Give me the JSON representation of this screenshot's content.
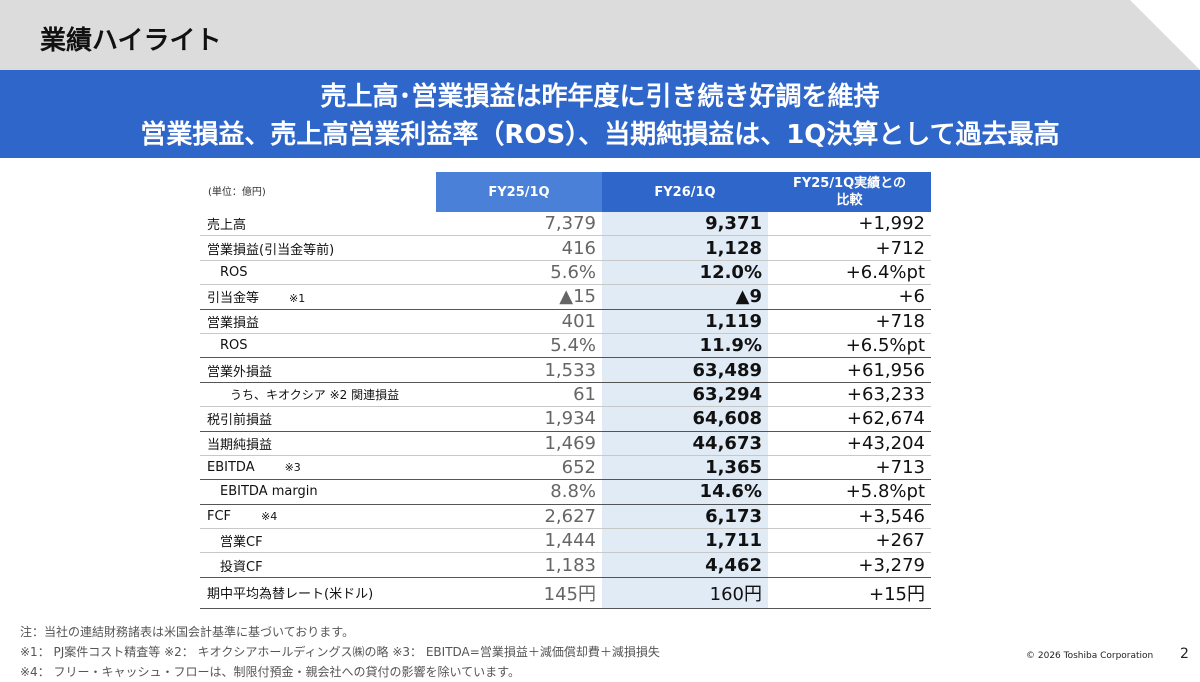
{
  "header": {
    "title": "業績ハイライト"
  },
  "banner": {
    "line1": "売上高･営業損益は昨年度に引き続き好調を維持",
    "line2": "営業損益、売上高営業利益率（ROS）、当期純損益は、1Q決算として過去最高"
  },
  "table": {
    "unit": "(単位：億円)",
    "col1": "FY25/1Q",
    "col2": "FY26/1Q",
    "col3_line1": "FY25/1Q実績との",
    "col3_line2": "比較",
    "rows": [
      {
        "label": "売上高",
        "note": "",
        "v1": "7,379",
        "v2": "9,371",
        "v3": "+1,992"
      },
      {
        "label": "営業損益(引当金等前)",
        "note": "",
        "v1": "416",
        "v2": "1,128",
        "v3": "+712"
      },
      {
        "label": "ROS",
        "note": "",
        "v1": "5.6%",
        "v2": "12.0%",
        "v3": "+6.4%pt"
      },
      {
        "label": "引当金等",
        "note": "※1",
        "v1": "▲15",
        "v2": "▲9",
        "v3": "+6"
      },
      {
        "label": "営業損益",
        "note": "",
        "v1": "401",
        "v2": "1,119",
        "v3": "+718"
      },
      {
        "label": "ROS",
        "note": "",
        "v1": "5.4%",
        "v2": "11.9%",
        "v3": "+6.5%pt"
      },
      {
        "label": "営業外損益",
        "note": "",
        "v1": "1,533",
        "v2": "63,489",
        "v3": "+61,956"
      },
      {
        "label": "うち、キオクシア ※2 関連損益",
        "note": "",
        "v1": "61",
        "v2": "63,294",
        "v3": "+63,233"
      },
      {
        "label": "税引前損益",
        "note": "",
        "v1": "1,934",
        "v2": "64,608",
        "v3": "+62,674"
      },
      {
        "label": "当期純損益",
        "note": "",
        "v1": "1,469",
        "v2": "44,673",
        "v3": "+43,204"
      },
      {
        "label": "EBITDA",
        "note": "※3",
        "v1": "652",
        "v2": "1,365",
        "v3": "+713"
      },
      {
        "label": "EBITDA margin",
        "note": "",
        "v1": "8.8%",
        "v2": "14.6%",
        "v3": "+5.8%pt"
      },
      {
        "label": "FCF",
        "note": "※4",
        "v1": "2,627",
        "v2": "6,173",
        "v3": "+3,546"
      },
      {
        "label": "営業CF",
        "note": "",
        "v1": "1,444",
        "v2": "1,711",
        "v3": "+267"
      },
      {
        "label": "投資CF",
        "note": "",
        "v1": "1,183",
        "v2": "4,462",
        "v3": "+3,279"
      },
      {
        "label": "期中平均為替レート(米ドル)",
        "note": "",
        "v1": "145円",
        "v2": "160円",
        "v3": "+15円"
      }
    ]
  },
  "footnotes": {
    "line1": "注：当社の連結財務諸表は米国会計基準に基づいております。",
    "line2": "※1： PJ案件コスト精査等 ※2： キオクシアホールディングス㈱の略 ※3： EBITDA=営業損益＋減価償却費＋減損損失",
    "line3": "※4： フリー・キャッシュ・フローは、制限付預金・親会社への貸付の影響を除いています。"
  },
  "footer": {
    "copyright": "© 2026 Toshiba Corporation",
    "page": "2"
  },
  "colors": {
    "accent": "#2f66c9",
    "highlight_column": "#e0ebf6",
    "top_bar": "#dcdcdc"
  }
}
